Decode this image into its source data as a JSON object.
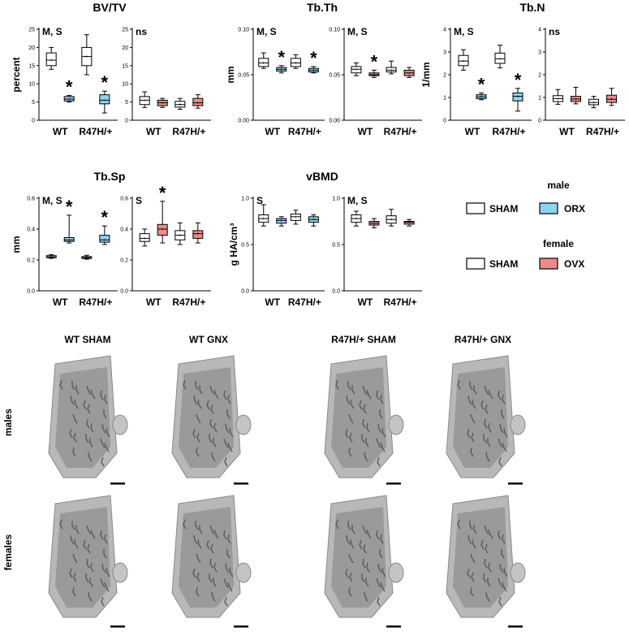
{
  "colors": {
    "sham": "#ffffff",
    "orx": "#8ed3ef",
    "ovx": "#ef8a8a",
    "stroke": "#000000"
  },
  "legend": {
    "male_title": "male",
    "female_title": "female",
    "male_items": [
      {
        "label": "SHAM",
        "color": "#ffffff"
      },
      {
        "label": "ORX",
        "color": "#8ed3ef"
      }
    ],
    "female_items": [
      {
        "label": "SHAM",
        "color": "#ffffff"
      },
      {
        "label": "OVX",
        "color": "#ef8a8a"
      }
    ]
  },
  "chart_data": [
    {
      "type": "box",
      "title": "BV/TV",
      "ylabel": "percent",
      "sex": "male",
      "annotation": "M, S",
      "ylim": [
        0,
        25
      ],
      "yticks": [
        0,
        5,
        10,
        15,
        20,
        25
      ],
      "categories": [
        "WT",
        "R47H/+"
      ],
      "boxes": [
        {
          "group": "WT",
          "treatment": "SHAM",
          "min": 14,
          "q1": 15,
          "median": 16.5,
          "q3": 18.5,
          "max": 20,
          "star": false
        },
        {
          "group": "WT",
          "treatment": "ORX",
          "min": 5,
          "q1": 5.3,
          "median": 5.8,
          "q3": 6.5,
          "max": 6.8,
          "star": true
        },
        {
          "group": "R47H/+",
          "treatment": "SHAM",
          "min": 12.5,
          "q1": 15,
          "median": 17.5,
          "q3": 20,
          "max": 23.5,
          "star": false
        },
        {
          "group": "R47H/+",
          "treatment": "ORX",
          "min": 2,
          "q1": 4.5,
          "median": 5.5,
          "q3": 7,
          "max": 8,
          "star": true
        }
      ]
    },
    {
      "type": "box",
      "title": "",
      "ylabel": "",
      "sex": "female",
      "annotation": "ns",
      "ylim": [
        0,
        25
      ],
      "yticks": [
        0,
        5,
        10,
        15,
        20,
        25
      ],
      "categories": [
        "WT",
        "R47H/+"
      ],
      "boxes": [
        {
          "group": "WT",
          "treatment": "SHAM",
          "min": 3.5,
          "q1": 4.3,
          "median": 5.5,
          "q3": 6.5,
          "max": 7.8,
          "star": false
        },
        {
          "group": "WT",
          "treatment": "OVX",
          "min": 3.5,
          "q1": 4,
          "median": 4.8,
          "q3": 5.5,
          "max": 6,
          "star": false
        },
        {
          "group": "R47H/+",
          "treatment": "SHAM",
          "min": 3,
          "q1": 3.6,
          "median": 4.3,
          "q3": 5.2,
          "max": 6,
          "star": false
        },
        {
          "group": "R47H/+",
          "treatment": "OVX",
          "min": 3.3,
          "q1": 4,
          "median": 4.8,
          "q3": 6,
          "max": 7,
          "star": false
        }
      ]
    },
    {
      "type": "box",
      "title": "Tb.Th",
      "ylabel": "mm",
      "sex": "male",
      "annotation": "M, S",
      "ylim": [
        0,
        0.1
      ],
      "yticks": [
        "0.00",
        "0.05",
        "0.10"
      ],
      "categories": [
        "WT",
        "R47H/+"
      ],
      "boxes": [
        {
          "group": "WT",
          "treatment": "SHAM",
          "min": 0.057,
          "q1": 0.059,
          "median": 0.063,
          "q3": 0.068,
          "max": 0.074,
          "star": false
        },
        {
          "group": "WT",
          "treatment": "ORX",
          "min": 0.052,
          "q1": 0.054,
          "median": 0.056,
          "q3": 0.058,
          "max": 0.06,
          "star": true
        },
        {
          "group": "R47H/+",
          "treatment": "SHAM",
          "min": 0.057,
          "q1": 0.059,
          "median": 0.063,
          "q3": 0.068,
          "max": 0.072,
          "star": false
        },
        {
          "group": "R47H/+",
          "treatment": "ORX",
          "min": 0.052,
          "q1": 0.053,
          "median": 0.055,
          "q3": 0.057,
          "max": 0.059,
          "star": true
        }
      ]
    },
    {
      "type": "box",
      "title": "",
      "ylabel": "",
      "sex": "female",
      "annotation": "M, S",
      "ylim": [
        0,
        0.1
      ],
      "yticks": [
        "0.00",
        "0.05",
        "0.10"
      ],
      "categories": [
        "WT",
        "R47H/+"
      ],
      "boxes": [
        {
          "group": "WT",
          "treatment": "SHAM",
          "min": 0.049,
          "q1": 0.052,
          "median": 0.056,
          "q3": 0.059,
          "max": 0.063,
          "star": false
        },
        {
          "group": "WT",
          "treatment": "OVX",
          "min": 0.047,
          "q1": 0.049,
          "median": 0.05,
          "q3": 0.052,
          "max": 0.055,
          "star": true
        },
        {
          "group": "R47H/+",
          "treatment": "SHAM",
          "min": 0.051,
          "q1": 0.053,
          "median": 0.055,
          "q3": 0.058,
          "max": 0.065,
          "star": false
        },
        {
          "group": "R47H/+",
          "treatment": "OVX",
          "min": 0.047,
          "q1": 0.049,
          "median": 0.052,
          "q3": 0.055,
          "max": 0.058,
          "star": false
        }
      ]
    },
    {
      "type": "box",
      "title": "Tb.N",
      "ylabel": "1/mm",
      "sex": "male",
      "annotation": "M, S",
      "ylim": [
        0,
        4
      ],
      "yticks": [
        0,
        1,
        2,
        3,
        4
      ],
      "categories": [
        "WT",
        "R47H/+"
      ],
      "boxes": [
        {
          "group": "WT",
          "treatment": "SHAM",
          "min": 2.2,
          "q1": 2.4,
          "median": 2.6,
          "q3": 2.85,
          "max": 3.1,
          "star": false
        },
        {
          "group": "WT",
          "treatment": "ORX",
          "min": 0.9,
          "q1": 0.95,
          "median": 1.03,
          "q3": 1.12,
          "max": 1.2,
          "star": true
        },
        {
          "group": "R47H/+",
          "treatment": "SHAM",
          "min": 2.3,
          "q1": 2.5,
          "median": 2.7,
          "q3": 2.95,
          "max": 3.3,
          "star": false
        },
        {
          "group": "R47H/+",
          "treatment": "ORX",
          "min": 0.4,
          "q1": 0.85,
          "median": 1.05,
          "q3": 1.2,
          "max": 1.4,
          "star": true
        }
      ]
    },
    {
      "type": "box",
      "title": "",
      "ylabel": "",
      "sex": "female",
      "annotation": "ns",
      "ylim": [
        0,
        4
      ],
      "yticks": [
        0,
        1,
        2,
        3,
        4
      ],
      "categories": [
        "WT",
        "R47H/+"
      ],
      "boxes": [
        {
          "group": "WT",
          "treatment": "SHAM",
          "min": 0.7,
          "q1": 0.82,
          "median": 0.95,
          "q3": 1.08,
          "max": 1.35,
          "star": false
        },
        {
          "group": "WT",
          "treatment": "OVX",
          "min": 0.72,
          "q1": 0.82,
          "median": 0.93,
          "q3": 1.05,
          "max": 1.45,
          "star": false
        },
        {
          "group": "R47H/+",
          "treatment": "SHAM",
          "min": 0.55,
          "q1": 0.68,
          "median": 0.78,
          "q3": 0.92,
          "max": 1.05,
          "star": false
        },
        {
          "group": "R47H/+",
          "treatment": "OVX",
          "min": 0.65,
          "q1": 0.78,
          "median": 0.92,
          "q3": 1.1,
          "max": 1.4,
          "star": false
        }
      ]
    },
    {
      "type": "box",
      "title": "Tb.Sp",
      "ylabel": "mm",
      "sex": "male",
      "annotation": "M, S",
      "ylim": [
        0,
        0.6
      ],
      "yticks": [
        "0.0",
        "0.2",
        "0.4",
        "0.6"
      ],
      "categories": [
        "WT",
        "R47H/+"
      ],
      "boxes": [
        {
          "group": "WT",
          "treatment": "SHAM",
          "min": 0.21,
          "q1": 0.215,
          "median": 0.22,
          "q3": 0.228,
          "max": 0.235,
          "star": false
        },
        {
          "group": "WT",
          "treatment": "ORX",
          "min": 0.31,
          "q1": 0.32,
          "median": 0.33,
          "q3": 0.345,
          "max": 0.49,
          "star": true
        },
        {
          "group": "R47H/+",
          "treatment": "SHAM",
          "min": 0.205,
          "q1": 0.21,
          "median": 0.215,
          "q3": 0.222,
          "max": 0.23,
          "star": false
        },
        {
          "group": "R47H/+",
          "treatment": "ORX",
          "min": 0.3,
          "q1": 0.315,
          "median": 0.33,
          "q3": 0.36,
          "max": 0.42,
          "star": true
        }
      ]
    },
    {
      "type": "box",
      "title": "",
      "ylabel": "",
      "sex": "female",
      "annotation": "S",
      "ylim": [
        0,
        0.6
      ],
      "yticks": [
        "0.0",
        "0.2",
        "0.4",
        "0.6"
      ],
      "categories": [
        "WT",
        "R47H/+"
      ],
      "boxes": [
        {
          "group": "WT",
          "treatment": "SHAM",
          "min": 0.29,
          "q1": 0.32,
          "median": 0.34,
          "q3": 0.37,
          "max": 0.4,
          "star": false
        },
        {
          "group": "WT",
          "treatment": "OVX",
          "min": 0.31,
          "q1": 0.36,
          "median": 0.4,
          "q3": 0.43,
          "max": 0.58,
          "star": true
        },
        {
          "group": "R47H/+",
          "treatment": "SHAM",
          "min": 0.3,
          "q1": 0.33,
          "median": 0.36,
          "q3": 0.39,
          "max": 0.44,
          "star": false
        },
        {
          "group": "R47H/+",
          "treatment": "OVX",
          "min": 0.31,
          "q1": 0.34,
          "median": 0.37,
          "q3": 0.39,
          "max": 0.44,
          "star": false
        }
      ]
    },
    {
      "type": "box",
      "title": "vBMD",
      "ylabel": "g HA/cm³",
      "sex": "male",
      "annotation": "S",
      "ylim": [
        0,
        1.0
      ],
      "yticks": [
        "0.0",
        "0.5",
        "1.0"
      ],
      "categories": [
        "WT",
        "R47H/+"
      ],
      "boxes": [
        {
          "group": "WT",
          "treatment": "SHAM",
          "min": 0.7,
          "q1": 0.74,
          "median": 0.78,
          "q3": 0.82,
          "max": 0.93,
          "star": false
        },
        {
          "group": "WT",
          "treatment": "ORX",
          "min": 0.7,
          "q1": 0.73,
          "median": 0.76,
          "q3": 0.78,
          "max": 0.8,
          "star": false
        },
        {
          "group": "R47H/+",
          "treatment": "SHAM",
          "min": 0.72,
          "q1": 0.76,
          "median": 0.8,
          "q3": 0.83,
          "max": 0.87,
          "star": false
        },
        {
          "group": "R47H/+",
          "treatment": "ORX",
          "min": 0.7,
          "q1": 0.74,
          "median": 0.77,
          "q3": 0.8,
          "max": 0.82,
          "star": false
        }
      ]
    },
    {
      "type": "box",
      "title": "",
      "ylabel": "",
      "sex": "female",
      "annotation": "M, S",
      "ylim": [
        0,
        1.0
      ],
      "yticks": [
        "0.0",
        "0.5",
        "1.0"
      ],
      "categories": [
        "WT",
        "R47H/+"
      ],
      "boxes": [
        {
          "group": "WT",
          "treatment": "SHAM",
          "min": 0.7,
          "q1": 0.74,
          "median": 0.78,
          "q3": 0.82,
          "max": 0.86,
          "star": false
        },
        {
          "group": "WT",
          "treatment": "OVX",
          "min": 0.68,
          "q1": 0.71,
          "median": 0.73,
          "q3": 0.75,
          "max": 0.78,
          "star": false
        },
        {
          "group": "R47H/+",
          "treatment": "SHAM",
          "min": 0.7,
          "q1": 0.73,
          "median": 0.77,
          "q3": 0.81,
          "max": 0.88,
          "star": false
        },
        {
          "group": "R47H/+",
          "treatment": "OVX",
          "min": 0.7,
          "q1": 0.72,
          "median": 0.74,
          "q3": 0.75,
          "max": 0.77,
          "star": false
        }
      ]
    }
  ],
  "images": {
    "column_titles": [
      "WT SHAM",
      "WT GNX",
      "R47H/+ SHAM",
      "R47H/+ GNX"
    ],
    "row_labels": [
      "males",
      "females"
    ]
  }
}
